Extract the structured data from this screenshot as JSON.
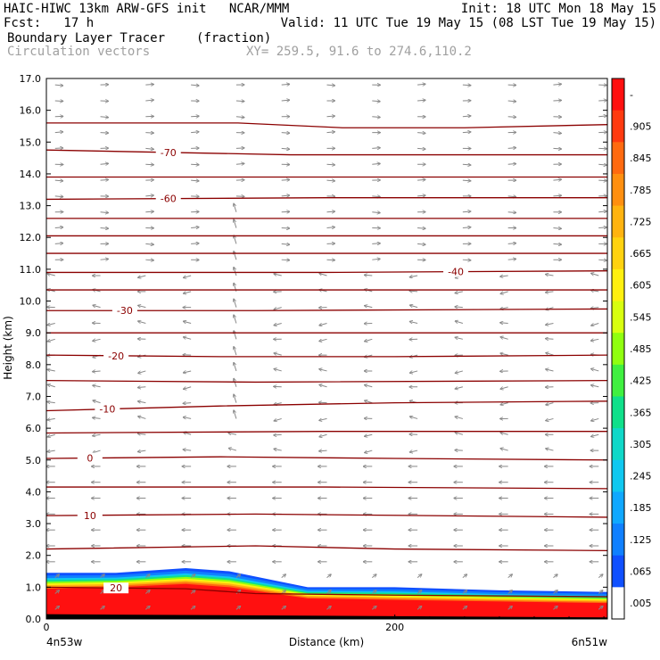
{
  "header": {
    "line1_left": "HAIC-HIWC 13km ARW-GFS init   NCAR/MMM",
    "line1_right": "Init: 18 UTC Mon 18 May 15",
    "line2_left": "Fcst:   17 h",
    "line2_right": "Valid: 11 UTC Tue 19 May 15 (08 LST Tue 19 May 15)",
    "field_name": "Boundary Layer Tracer",
    "field_units": "(fraction)",
    "vector_name": "Circulation vectors",
    "xy_text": "XY= 259.5, 91.6 to 274.6,110.2"
  },
  "chart_data": {
    "type": "heatmap",
    "title": "Boundary Layer Tracer",
    "ylabel": "Height (km)",
    "xlabel": "Distance (km)",
    "xlim": [
      0,
      322
    ],
    "ylim": [
      0,
      17
    ],
    "y_ticks": [
      "0.0",
      "1.0",
      "2.0",
      "3.0",
      "4.0",
      "5.0",
      "6.0",
      "7.0",
      "8.0",
      "9.0",
      "10.0",
      "11.0",
      "12.0",
      "13.0",
      "14.0",
      "15.0",
      "16.0",
      "17.0"
    ],
    "x_ticks": [
      {
        "value": 0,
        "label": "0"
      },
      {
        "value": 200,
        "label": "200"
      }
    ],
    "x_endpoints": {
      "left": "4n53w",
      "right": "6n51w"
    },
    "colorbar": {
      "labels": [
        "-",
        ".905",
        ".845",
        ".785",
        ".725",
        ".665",
        ".605",
        ".545",
        ".485",
        ".425",
        ".365",
        ".305",
        ".245",
        ".185",
        ".125",
        ".065",
        ".005"
      ],
      "colors": [
        "#ff1010",
        "#ff3a10",
        "#ff6a10",
        "#ff8f10",
        "#ffb310",
        "#ffd210",
        "#fff010",
        "#d8ff10",
        "#90ff10",
        "#40f040",
        "#10e08a",
        "#10d8c8",
        "#10c8f0",
        "#10a8ff",
        "#1080ff",
        "#1050ff",
        "#ffffff"
      ]
    },
    "tracer_top_km": [
      {
        "x": 0,
        "top": 1.45,
        "core": 0.95
      },
      {
        "x": 40,
        "top": 1.45,
        "core": 1.0
      },
      {
        "x": 80,
        "top": 1.6,
        "core": 1.1
      },
      {
        "x": 105,
        "top": 1.5,
        "core": 1.0
      },
      {
        "x": 150,
        "top": 1.0,
        "core": 0.65
      },
      {
        "x": 200,
        "top": 1.0,
        "core": 0.6
      },
      {
        "x": 260,
        "top": 0.9,
        "core": 0.55
      },
      {
        "x": 322,
        "top": 0.85,
        "core": 0.5
      }
    ],
    "temperature_contours": [
      {
        "label": "20",
        "label_x": 40,
        "points": [
          [
            0,
            1.0
          ],
          [
            80,
            0.95
          ],
          [
            120,
            0.8
          ],
          [
            200,
            0.75
          ],
          [
            322,
            0.7
          ]
        ]
      },
      {
        "label": "",
        "label_x": null,
        "points": [
          [
            0,
            2.2
          ],
          [
            120,
            2.3
          ],
          [
            200,
            2.2
          ],
          [
            322,
            2.15
          ]
        ]
      },
      {
        "label": "10",
        "label_x": 25,
        "points": [
          [
            0,
            3.25
          ],
          [
            120,
            3.3
          ],
          [
            220,
            3.25
          ],
          [
            322,
            3.2
          ]
        ]
      },
      {
        "label": "",
        "label_x": null,
        "points": [
          [
            0,
            4.15
          ],
          [
            160,
            4.15
          ],
          [
            322,
            4.1
          ]
        ]
      },
      {
        "label": "0",
        "label_x": 25,
        "points": [
          [
            0,
            5.05
          ],
          [
            100,
            5.1
          ],
          [
            200,
            5.05
          ],
          [
            322,
            5.0
          ]
        ]
      },
      {
        "label": "",
        "label_x": null,
        "points": [
          [
            0,
            5.85
          ],
          [
            160,
            5.9
          ],
          [
            322,
            5.9
          ]
        ]
      },
      {
        "label": "-10",
        "label_x": 35,
        "points": [
          [
            0,
            6.55
          ],
          [
            100,
            6.7
          ],
          [
            200,
            6.8
          ],
          [
            322,
            6.85
          ]
        ]
      },
      {
        "label": "",
        "label_x": null,
        "points": [
          [
            0,
            7.5
          ],
          [
            120,
            7.45
          ],
          [
            322,
            7.5
          ]
        ]
      },
      {
        "label": "-20",
        "label_x": 40,
        "points": [
          [
            0,
            8.3
          ],
          [
            100,
            8.25
          ],
          [
            200,
            8.25
          ],
          [
            322,
            8.3
          ]
        ]
      },
      {
        "label": "",
        "label_x": null,
        "points": [
          [
            0,
            9.0
          ],
          [
            160,
            9.0
          ],
          [
            322,
            9.0
          ]
        ]
      },
      {
        "label": "-30",
        "label_x": 45,
        "points": [
          [
            0,
            9.7
          ],
          [
            120,
            9.7
          ],
          [
            322,
            9.75
          ]
        ]
      },
      {
        "label": "",
        "label_x": null,
        "points": [
          [
            0,
            10.35
          ],
          [
            160,
            10.35
          ],
          [
            322,
            10.35
          ]
        ]
      },
      {
        "label": "-40",
        "label_x": 235,
        "points": [
          [
            0,
            10.9
          ],
          [
            160,
            10.9
          ],
          [
            322,
            10.95
          ]
        ]
      },
      {
        "label": "",
        "label_x": null,
        "points": [
          [
            0,
            11.5
          ],
          [
            160,
            11.5
          ],
          [
            322,
            11.5
          ]
        ]
      },
      {
        "label": "",
        "label_x": null,
        "points": [
          [
            0,
            12.05
          ],
          [
            160,
            12.05
          ],
          [
            322,
            12.05
          ]
        ]
      },
      {
        "label": "",
        "label_x": null,
        "points": [
          [
            0,
            12.6
          ],
          [
            160,
            12.6
          ],
          [
            322,
            12.6
          ]
        ]
      },
      {
        "label": "-60",
        "label_x": 70,
        "points": [
          [
            0,
            13.2
          ],
          [
            160,
            13.25
          ],
          [
            322,
            13.25
          ]
        ]
      },
      {
        "label": "",
        "label_x": null,
        "points": [
          [
            0,
            13.9
          ],
          [
            160,
            13.9
          ],
          [
            322,
            13.9
          ]
        ]
      },
      {
        "label": "-70",
        "label_x": 70,
        "points": [
          [
            0,
            14.75
          ],
          [
            140,
            14.6
          ],
          [
            322,
            14.6
          ]
        ]
      },
      {
        "label": "",
        "label_x": null,
        "points": [
          [
            0,
            15.6
          ],
          [
            110,
            15.6
          ],
          [
            170,
            15.45
          ],
          [
            240,
            15.45
          ],
          [
            322,
            15.55
          ]
        ]
      }
    ],
    "vectors": {
      "columns": 13,
      "rows": 34
    }
  }
}
